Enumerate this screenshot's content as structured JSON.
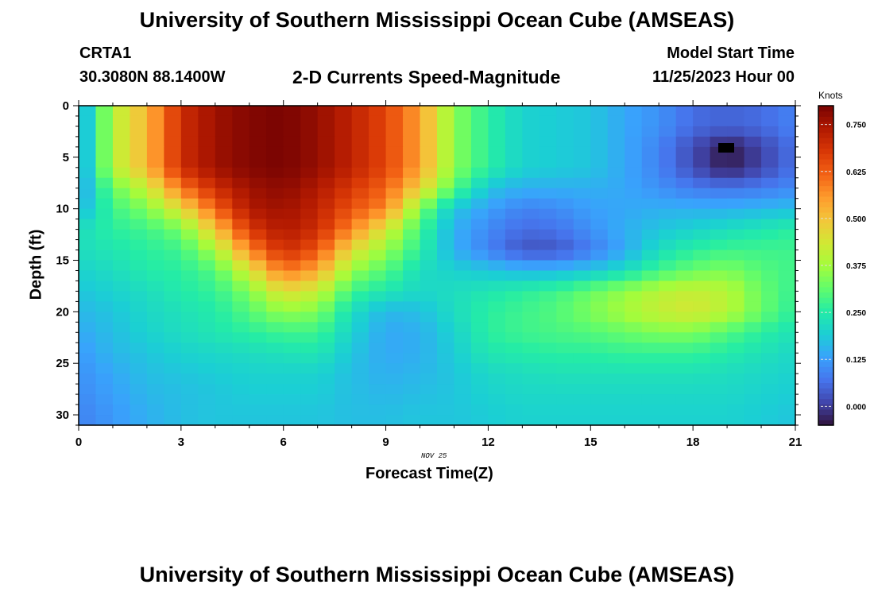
{
  "page": {
    "title": "University of Southern Mississippi Ocean Cube (AMSEAS)",
    "title_repeat": "University of Southern Mississippi Ocean Cube (AMSEAS)",
    "station": "CRTA1",
    "coordinates": "30.3080N  88.1400W",
    "heading": "2-D Currents Speed-Magnitude",
    "model_start_label": "Model Start Time",
    "model_start_value": "11/25/2023 Hour 00"
  },
  "chart_data": {
    "type": "heatmap",
    "title": "2-D Currents Speed-Magnitude",
    "xlabel": "Forecast Time(Z)",
    "ylabel": "Depth (ft)",
    "x_day_label": "NOV 25",
    "xlim": [
      0,
      21
    ],
    "ylim": [
      31,
      0
    ],
    "x_ticks": [
      0,
      3,
      6,
      9,
      12,
      15,
      18,
      21
    ],
    "y_ticks": [
      0,
      5,
      10,
      15,
      20,
      25,
      30
    ],
    "colorbar": {
      "label": "Knots",
      "range": [
        -0.05,
        0.8
      ],
      "ticks": [
        0.0,
        0.125,
        0.25,
        0.375,
        0.5,
        0.625,
        0.75
      ],
      "tick_labels": [
        "0.000",
        "0.125",
        "0.250",
        "0.375",
        "0.500",
        "0.625",
        "0.750"
      ],
      "colormap": [
        "#30123b",
        "#4145ab",
        "#4675ed",
        "#39a2fc",
        "#1bcfd4",
        "#24eca6",
        "#61fc6c",
        "#a4fc3b",
        "#d1e834",
        "#f3c63a",
        "#fe9b2d",
        "#f36315",
        "#d93806",
        "#b11901",
        "#7a0402"
      ]
    },
    "field_description": "Estimated current speed (knots) over forecast hours 0-21 and depths 0-31 ft at CRTA1",
    "grid": {
      "hours": [
        0,
        1,
        2,
        3,
        4,
        5,
        6,
        7,
        8,
        9,
        10,
        11,
        12,
        13,
        14,
        15,
        16,
        17,
        18,
        19,
        20,
        21
      ],
      "depths": [
        0,
        2,
        4,
        6,
        8,
        10,
        12,
        14,
        16,
        18,
        20,
        22,
        24,
        26,
        28,
        30,
        31
      ],
      "values": [
        [
          0.12,
          0.4,
          0.52,
          0.7,
          0.76,
          0.79,
          0.8,
          0.77,
          0.72,
          0.66,
          0.55,
          0.35,
          0.26,
          0.2,
          0.19,
          0.18,
          0.14,
          0.11,
          0.06,
          0.05,
          0.06,
          0.09
        ],
        [
          0.12,
          0.4,
          0.52,
          0.7,
          0.76,
          0.79,
          0.8,
          0.77,
          0.72,
          0.66,
          0.55,
          0.35,
          0.26,
          0.2,
          0.19,
          0.18,
          0.14,
          0.11,
          0.06,
          0.05,
          0.06,
          0.09
        ],
        [
          0.12,
          0.4,
          0.52,
          0.7,
          0.76,
          0.79,
          0.8,
          0.77,
          0.72,
          0.66,
          0.55,
          0.35,
          0.26,
          0.2,
          0.19,
          0.18,
          0.14,
          0.09,
          0.02,
          -0.04,
          0.01,
          0.07
        ],
        [
          0.12,
          0.4,
          0.52,
          0.7,
          0.76,
          0.79,
          0.8,
          0.77,
          0.72,
          0.66,
          0.55,
          0.35,
          0.26,
          0.2,
          0.19,
          0.18,
          0.14,
          0.09,
          0.02,
          -0.04,
          0.01,
          0.07
        ],
        [
          0.12,
          0.32,
          0.42,
          0.6,
          0.7,
          0.76,
          0.78,
          0.74,
          0.68,
          0.62,
          0.48,
          0.3,
          0.18,
          0.15,
          0.15,
          0.15,
          0.14,
          0.11,
          0.08,
          0.07,
          0.08,
          0.1
        ],
        [
          0.15,
          0.28,
          0.34,
          0.46,
          0.62,
          0.74,
          0.76,
          0.72,
          0.64,
          0.58,
          0.34,
          0.18,
          0.13,
          0.09,
          0.1,
          0.13,
          0.14,
          0.15,
          0.15,
          0.15,
          0.16,
          0.17
        ],
        [
          0.22,
          0.26,
          0.28,
          0.33,
          0.5,
          0.68,
          0.74,
          0.7,
          0.58,
          0.44,
          0.28,
          0.15,
          0.1,
          0.06,
          0.07,
          0.11,
          0.15,
          0.18,
          0.2,
          0.22,
          0.24,
          0.26
        ],
        [
          0.22,
          0.24,
          0.26,
          0.28,
          0.38,
          0.58,
          0.7,
          0.64,
          0.46,
          0.36,
          0.26,
          0.15,
          0.09,
          0.03,
          0.03,
          0.08,
          0.14,
          0.22,
          0.26,
          0.28,
          0.28,
          0.28
        ],
        [
          0.2,
          0.22,
          0.25,
          0.26,
          0.3,
          0.44,
          0.6,
          0.54,
          0.36,
          0.3,
          0.22,
          0.2,
          0.18,
          0.16,
          0.16,
          0.18,
          0.22,
          0.28,
          0.32,
          0.34,
          0.3,
          0.28
        ],
        [
          0.18,
          0.2,
          0.22,
          0.25,
          0.27,
          0.34,
          0.46,
          0.42,
          0.28,
          0.24,
          0.21,
          0.22,
          0.24,
          0.26,
          0.28,
          0.32,
          0.36,
          0.4,
          0.42,
          0.4,
          0.32,
          0.27
        ],
        [
          0.16,
          0.18,
          0.21,
          0.23,
          0.25,
          0.3,
          0.36,
          0.34,
          0.22,
          0.16,
          0.17,
          0.22,
          0.26,
          0.28,
          0.3,
          0.34,
          0.38,
          0.42,
          0.44,
          0.4,
          0.32,
          0.26
        ],
        [
          0.14,
          0.17,
          0.2,
          0.22,
          0.24,
          0.26,
          0.28,
          0.28,
          0.2,
          0.14,
          0.15,
          0.2,
          0.26,
          0.28,
          0.29,
          0.3,
          0.32,
          0.34,
          0.34,
          0.3,
          0.26,
          0.23
        ],
        [
          0.12,
          0.16,
          0.18,
          0.2,
          0.21,
          0.22,
          0.23,
          0.24,
          0.18,
          0.14,
          0.15,
          0.19,
          0.24,
          0.25,
          0.26,
          0.26,
          0.27,
          0.27,
          0.27,
          0.25,
          0.23,
          0.21
        ],
        [
          0.11,
          0.14,
          0.17,
          0.18,
          0.19,
          0.2,
          0.2,
          0.2,
          0.17,
          0.15,
          0.16,
          0.18,
          0.21,
          0.22,
          0.23,
          0.23,
          0.23,
          0.23,
          0.23,
          0.22,
          0.21,
          0.2
        ],
        [
          0.1,
          0.13,
          0.16,
          0.17,
          0.18,
          0.19,
          0.19,
          0.19,
          0.17,
          0.16,
          0.17,
          0.18,
          0.2,
          0.21,
          0.21,
          0.21,
          0.21,
          0.21,
          0.21,
          0.21,
          0.2,
          0.19
        ],
        [
          0.09,
          0.12,
          0.15,
          0.17,
          0.18,
          0.18,
          0.18,
          0.18,
          0.17,
          0.17,
          0.18,
          0.18,
          0.19,
          0.2,
          0.2,
          0.2,
          0.2,
          0.2,
          0.2,
          0.2,
          0.19,
          0.18
        ],
        [
          0.09,
          0.12,
          0.15,
          0.17,
          0.18,
          0.18,
          0.18,
          0.18,
          0.17,
          0.17,
          0.18,
          0.18,
          0.19,
          0.2,
          0.2,
          0.2,
          0.2,
          0.2,
          0.2,
          0.2,
          0.19,
          0.18
        ]
      ]
    }
  }
}
